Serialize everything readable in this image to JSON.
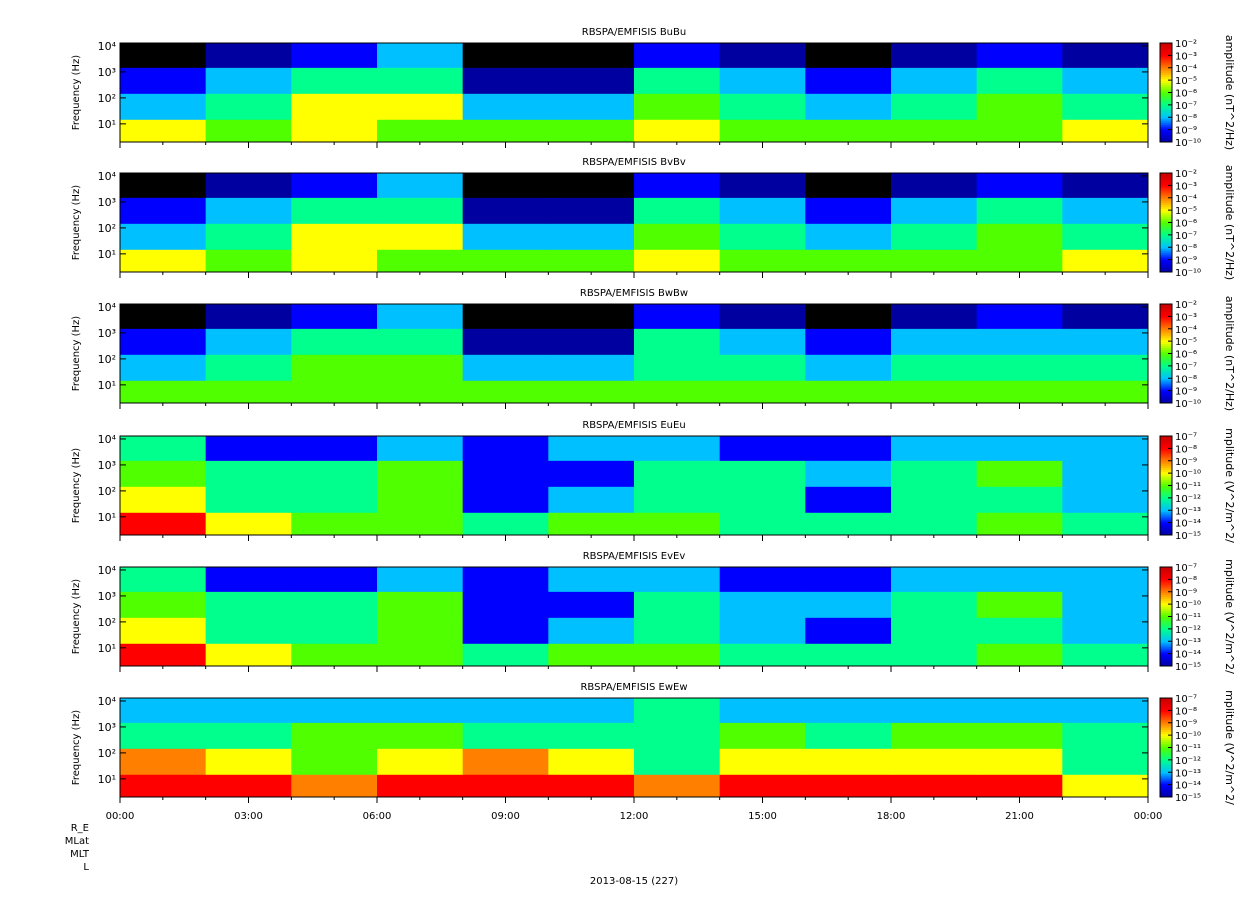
{
  "chart_data": [
    {
      "type": "heatmap",
      "title": "RBSPA/EMFISIS  BuBu",
      "y_label": "Frequency (Hz)",
      "x_bins": [
        0,
        2,
        4,
        6,
        8,
        10,
        12,
        14,
        16,
        18,
        20,
        22,
        24
      ],
      "y_bins": [
        2,
        15,
        150,
        1500,
        13000
      ],
      "values": [
        [
          1e-05,
          1e-06,
          1e-05,
          1e-06,
          1e-06,
          1e-06,
          1e-05,
          1e-06,
          1e-06,
          1e-06,
          1e-06,
          1e-05
        ],
        [
          1e-08,
          1e-07,
          1e-05,
          1e-05,
          1e-08,
          1e-08,
          1e-06,
          1e-07,
          1e-08,
          1e-07,
          1e-06,
          1e-07
        ],
        [
          1e-09,
          1e-08,
          1e-07,
          1e-07,
          1e-10,
          1e-10,
          1e-07,
          1e-08,
          1e-09,
          1e-08,
          1e-07,
          1e-08
        ],
        [
          1e-11,
          1e-10,
          1e-09,
          1e-08,
          1e-11,
          1e-11,
          1e-09,
          1e-10,
          1e-11,
          1e-10,
          1e-09,
          1e-10
        ]
      ],
      "xlim": [
        0,
        24
      ],
      "xticks": [
        0,
        3,
        6,
        9,
        12,
        15,
        18,
        21,
        24
      ],
      "ylim": [
        2,
        13000
      ],
      "log_y": true,
      "yticks": [
        {
          "value": 10,
          "label": "10¹"
        },
        {
          "value": 100,
          "label": "10²"
        },
        {
          "value": 1000,
          "label": "10³"
        },
        {
          "value": 10000,
          "label": "10⁴"
        }
      ],
      "colorbar": {
        "label": "amplitude (nT^2/Hz)",
        "lim": [
          1e-10,
          0.01
        ],
        "ticks": [
          {
            "value": 1e-10,
            "label": "10⁻¹⁰"
          },
          {
            "value": 1e-09,
            "label": "10⁻⁹"
          },
          {
            "value": 1e-08,
            "label": "10⁻⁸"
          },
          {
            "value": 1e-07,
            "label": "10⁻⁷"
          },
          {
            "value": 1e-06,
            "label": "10⁻⁶"
          },
          {
            "value": 1e-05,
            "label": "10⁻⁵"
          },
          {
            "value": 0.0001,
            "label": "10⁻⁴"
          },
          {
            "value": 0.001,
            "label": "10⁻³"
          },
          {
            "value": 0.01,
            "label": "10⁻²"
          }
        ]
      }
    },
    {
      "type": "heatmap",
      "title": "RBSPA/EMFISIS  BvBv",
      "y_label": "Frequency (Hz)",
      "x_bins": [
        0,
        2,
        4,
        6,
        8,
        10,
        12,
        14,
        16,
        18,
        20,
        22,
        24
      ],
      "y_bins": [
        2,
        15,
        150,
        1500,
        13000
      ],
      "values": [
        [
          1e-05,
          1e-06,
          1e-05,
          1e-06,
          1e-06,
          1e-06,
          1e-05,
          1e-06,
          1e-06,
          1e-06,
          1e-06,
          1e-05
        ],
        [
          1e-08,
          1e-07,
          1e-05,
          1e-05,
          1e-08,
          1e-08,
          1e-06,
          1e-07,
          1e-08,
          1e-07,
          1e-06,
          1e-07
        ],
        [
          1e-09,
          1e-08,
          1e-07,
          1e-07,
          1e-10,
          1e-10,
          1e-07,
          1e-08,
          1e-09,
          1e-08,
          1e-07,
          1e-08
        ],
        [
          1e-11,
          1e-10,
          1e-09,
          1e-08,
          1e-11,
          1e-11,
          1e-09,
          1e-10,
          1e-11,
          1e-10,
          1e-09,
          1e-10
        ]
      ],
      "xlim": [
        0,
        24
      ],
      "xticks": [
        0,
        3,
        6,
        9,
        12,
        15,
        18,
        21,
        24
      ],
      "ylim": [
        2,
        13000
      ],
      "log_y": true,
      "yticks": [
        {
          "value": 10,
          "label": "10¹"
        },
        {
          "value": 100,
          "label": "10²"
        },
        {
          "value": 1000,
          "label": "10³"
        },
        {
          "value": 10000,
          "label": "10⁴"
        }
      ],
      "colorbar": {
        "label": "amplitude (nT^2/Hz)",
        "lim": [
          1e-10,
          0.01
        ],
        "ticks": [
          {
            "value": 1e-10,
            "label": "10⁻¹⁰"
          },
          {
            "value": 1e-09,
            "label": "10⁻⁹"
          },
          {
            "value": 1e-08,
            "label": "10⁻⁸"
          },
          {
            "value": 1e-07,
            "label": "10⁻⁷"
          },
          {
            "value": 1e-06,
            "label": "10⁻⁶"
          },
          {
            "value": 1e-05,
            "label": "10⁻⁵"
          },
          {
            "value": 0.0001,
            "label": "10⁻⁴"
          },
          {
            "value": 0.001,
            "label": "10⁻³"
          },
          {
            "value": 0.01,
            "label": "10⁻²"
          }
        ]
      }
    },
    {
      "type": "heatmap",
      "title": "RBSPA/EMFISIS  BwBw",
      "y_label": "Frequency (Hz)",
      "x_bins": [
        0,
        2,
        4,
        6,
        8,
        10,
        12,
        14,
        16,
        18,
        20,
        22,
        24
      ],
      "y_bins": [
        2,
        15,
        150,
        1500,
        13000
      ],
      "values": [
        [
          1e-06,
          1e-06,
          1e-06,
          1e-06,
          1e-06,
          1e-06,
          1e-06,
          1e-06,
          1e-06,
          1e-06,
          1e-06,
          1e-06
        ],
        [
          1e-08,
          1e-07,
          1e-06,
          1e-06,
          1e-08,
          1e-08,
          1e-07,
          1e-07,
          1e-08,
          1e-07,
          1e-07,
          1e-07
        ],
        [
          1e-09,
          1e-08,
          1e-07,
          1e-07,
          1e-10,
          1e-10,
          1e-07,
          1e-08,
          1e-09,
          1e-08,
          1e-08,
          1e-08
        ],
        [
          1e-11,
          1e-10,
          1e-09,
          1e-08,
          1e-11,
          1e-11,
          1e-09,
          1e-10,
          1e-11,
          1e-10,
          1e-09,
          1e-10
        ]
      ],
      "xlim": [
        0,
        24
      ],
      "xticks": [
        0,
        3,
        6,
        9,
        12,
        15,
        18,
        21,
        24
      ],
      "ylim": [
        2,
        13000
      ],
      "log_y": true,
      "yticks": [
        {
          "value": 10,
          "label": "10¹"
        },
        {
          "value": 100,
          "label": "10²"
        },
        {
          "value": 1000,
          "label": "10³"
        },
        {
          "value": 10000,
          "label": "10⁴"
        }
      ],
      "colorbar": {
        "label": "amplitude (nT^2/Hz)",
        "lim": [
          1e-10,
          0.01
        ],
        "ticks": [
          {
            "value": 1e-10,
            "label": "10⁻¹⁰"
          },
          {
            "value": 1e-09,
            "label": "10⁻⁹"
          },
          {
            "value": 1e-08,
            "label": "10⁻⁸"
          },
          {
            "value": 1e-07,
            "label": "10⁻⁷"
          },
          {
            "value": 1e-06,
            "label": "10⁻⁶"
          },
          {
            "value": 1e-05,
            "label": "10⁻⁵"
          },
          {
            "value": 0.0001,
            "label": "10⁻⁴"
          },
          {
            "value": 0.001,
            "label": "10⁻³"
          },
          {
            "value": 0.01,
            "label": "10⁻²"
          }
        ]
      }
    },
    {
      "type": "heatmap",
      "title": "RBSPA/EMFISIS  EuEu",
      "y_label": "Frequency (Hz)",
      "x_bins": [
        0,
        2,
        4,
        6,
        8,
        10,
        12,
        14,
        16,
        18,
        20,
        22,
        24
      ],
      "y_bins": [
        2,
        15,
        150,
        1500,
        13000
      ],
      "values": [
        [
          1e-08,
          1e-10,
          1e-11,
          1e-11,
          1e-12,
          1e-11,
          1e-11,
          1e-12,
          1e-12,
          1e-12,
          1e-11,
          1e-12
        ],
        [
          1e-10,
          1e-12,
          1e-12,
          1e-11,
          1e-14,
          1e-13,
          1e-12,
          1e-12,
          1e-14,
          1e-12,
          1e-12,
          1e-13
        ],
        [
          1e-11,
          1e-12,
          1e-12,
          1e-11,
          1e-14,
          1e-14,
          1e-12,
          1e-12,
          1e-13,
          1e-12,
          1e-11,
          1e-13
        ],
        [
          1e-12,
          1e-14,
          1e-14,
          1e-13,
          1e-14,
          1e-13,
          1e-13,
          1e-14,
          1e-14,
          1e-13,
          1e-13,
          1e-13
        ]
      ],
      "xlim": [
        0,
        24
      ],
      "xticks": [
        0,
        3,
        6,
        9,
        12,
        15,
        18,
        21,
        24
      ],
      "ylim": [
        2,
        13000
      ],
      "log_y": true,
      "yticks": [
        {
          "value": 10,
          "label": "10¹"
        },
        {
          "value": 100,
          "label": "10²"
        },
        {
          "value": 1000,
          "label": "10³"
        },
        {
          "value": 10000,
          "label": "10⁴"
        }
      ],
      "colorbar": {
        "label": "mplitude (V^2/m^2/",
        "lim": [
          1e-15,
          1e-07
        ],
        "ticks": [
          {
            "value": 1e-15,
            "label": "10⁻¹⁵"
          },
          {
            "value": 1e-14,
            "label": "10⁻¹⁴"
          },
          {
            "value": 1e-13,
            "label": "10⁻¹³"
          },
          {
            "value": 1e-12,
            "label": "10⁻¹²"
          },
          {
            "value": 1e-11,
            "label": "10⁻¹¹"
          },
          {
            "value": 1e-10,
            "label": "10⁻¹⁰"
          },
          {
            "value": 1e-09,
            "label": "10⁻⁹"
          },
          {
            "value": 1e-08,
            "label": "10⁻⁸"
          },
          {
            "value": 1e-07,
            "label": "10⁻⁷"
          }
        ]
      }
    },
    {
      "type": "heatmap",
      "title": "RBSPA/EMFISIS  EvEv",
      "y_label": "Frequency (Hz)",
      "x_bins": [
        0,
        2,
        4,
        6,
        8,
        10,
        12,
        14,
        16,
        18,
        20,
        22,
        24
      ],
      "y_bins": [
        2,
        15,
        150,
        1500,
        13000
      ],
      "values": [
        [
          1e-08,
          1e-10,
          1e-11,
          1e-11,
          1e-12,
          1e-11,
          1e-11,
          1e-12,
          1e-12,
          1e-12,
          1e-11,
          1e-12
        ],
        [
          1e-10,
          1e-12,
          1e-12,
          1e-11,
          1e-14,
          1e-13,
          1e-12,
          1e-13,
          1e-14,
          1e-12,
          1e-12,
          1e-13
        ],
        [
          1e-11,
          1e-12,
          1e-12,
          1e-11,
          1e-14,
          1e-14,
          1e-12,
          1e-13,
          1e-13,
          1e-12,
          1e-11,
          1e-13
        ],
        [
          1e-12,
          1e-14,
          1e-14,
          1e-13,
          1e-14,
          1e-13,
          1e-13,
          1e-14,
          1e-14,
          1e-13,
          1e-13,
          1e-13
        ]
      ],
      "xlim": [
        0,
        24
      ],
      "xticks": [
        0,
        3,
        6,
        9,
        12,
        15,
        18,
        21,
        24
      ],
      "ylim": [
        2,
        13000
      ],
      "log_y": true,
      "yticks": [
        {
          "value": 10,
          "label": "10¹"
        },
        {
          "value": 100,
          "label": "10²"
        },
        {
          "value": 1000,
          "label": "10³"
        },
        {
          "value": 10000,
          "label": "10⁴"
        }
      ],
      "colorbar": {
        "label": "mplitude (V^2/m^2/",
        "lim": [
          1e-15,
          1e-07
        ],
        "ticks": [
          {
            "value": 1e-15,
            "label": "10⁻¹⁵"
          },
          {
            "value": 1e-14,
            "label": "10⁻¹⁴"
          },
          {
            "value": 1e-13,
            "label": "10⁻¹³"
          },
          {
            "value": 1e-12,
            "label": "10⁻¹²"
          },
          {
            "value": 1e-11,
            "label": "10⁻¹¹"
          },
          {
            "value": 1e-10,
            "label": "10⁻¹⁰"
          },
          {
            "value": 1e-09,
            "label": "10⁻⁹"
          },
          {
            "value": 1e-08,
            "label": "10⁻⁸"
          },
          {
            "value": 1e-07,
            "label": "10⁻⁷"
          }
        ]
      }
    },
    {
      "type": "heatmap",
      "title": "RBSPA/EMFISIS  EwEw",
      "y_label": "Frequency (Hz)",
      "x_bins": [
        0,
        2,
        4,
        6,
        8,
        10,
        12,
        14,
        16,
        18,
        20,
        22,
        24
      ],
      "y_bins": [
        2,
        15,
        150,
        1500,
        13000
      ],
      "values": [
        [
          1e-08,
          1e-08,
          1e-09,
          1e-08,
          1e-08,
          1e-08,
          1e-09,
          1e-08,
          1e-08,
          1e-08,
          1e-08,
          1e-10
        ],
        [
          1e-09,
          1e-10,
          1e-11,
          1e-10,
          1e-09,
          1e-10,
          1e-12,
          1e-10,
          1e-10,
          1e-10,
          1e-10,
          1e-12
        ],
        [
          1e-12,
          1e-12,
          1e-11,
          1e-11,
          1e-12,
          1e-12,
          1e-12,
          1e-11,
          1e-12,
          1e-11,
          1e-11,
          1e-12
        ],
        [
          1e-13,
          1e-13,
          1e-13,
          1e-13,
          1e-13,
          1e-13,
          1e-12,
          1e-13,
          1e-13,
          1e-13,
          1e-13,
          1e-13
        ]
      ],
      "xlim": [
        0,
        24
      ],
      "ylim": [
        2,
        13000
      ],
      "log_y": true,
      "xticks": [
        {
          "value": 0,
          "label": "00:00"
        },
        {
          "value": 3,
          "label": "03:00"
        },
        {
          "value": 6,
          "label": "06:00"
        },
        {
          "value": 9,
          "label": "09:00"
        },
        {
          "value": 12,
          "label": "12:00"
        },
        {
          "value": 15,
          "label": "15:00"
        },
        {
          "value": 18,
          "label": "18:00"
        },
        {
          "value": 21,
          "label": "21:00"
        },
        {
          "value": 24,
          "label": "00:00"
        }
      ],
      "yticks": [
        {
          "value": 10,
          "label": "10¹"
        },
        {
          "value": 100,
          "label": "10²"
        },
        {
          "value": 1000,
          "label": "10³"
        },
        {
          "value": 10000,
          "label": "10⁴"
        }
      ],
      "colorbar": {
        "label": "mplitude (V^2/m^2/",
        "lim": [
          1e-15,
          1e-07
        ],
        "ticks": [
          {
            "value": 1e-15,
            "label": "10⁻¹⁵"
          },
          {
            "value": 1e-14,
            "label": "10⁻¹⁴"
          },
          {
            "value": 1e-13,
            "label": "10⁻¹³"
          },
          {
            "value": 1e-12,
            "label": "10⁻¹²"
          },
          {
            "value": 1e-11,
            "label": "10⁻¹¹"
          },
          {
            "value": 1e-10,
            "label": "10⁻¹⁰"
          },
          {
            "value": 1e-09,
            "label": "10⁻⁹"
          },
          {
            "value": 1e-08,
            "label": "10⁻⁸"
          },
          {
            "value": 1e-07,
            "label": "10⁻⁷"
          }
        ]
      },
      "orbit_labels": [
        "R_E",
        "MLat",
        "MLT",
        "L"
      ],
      "date_label": "2013-08-15 (227)"
    }
  ]
}
